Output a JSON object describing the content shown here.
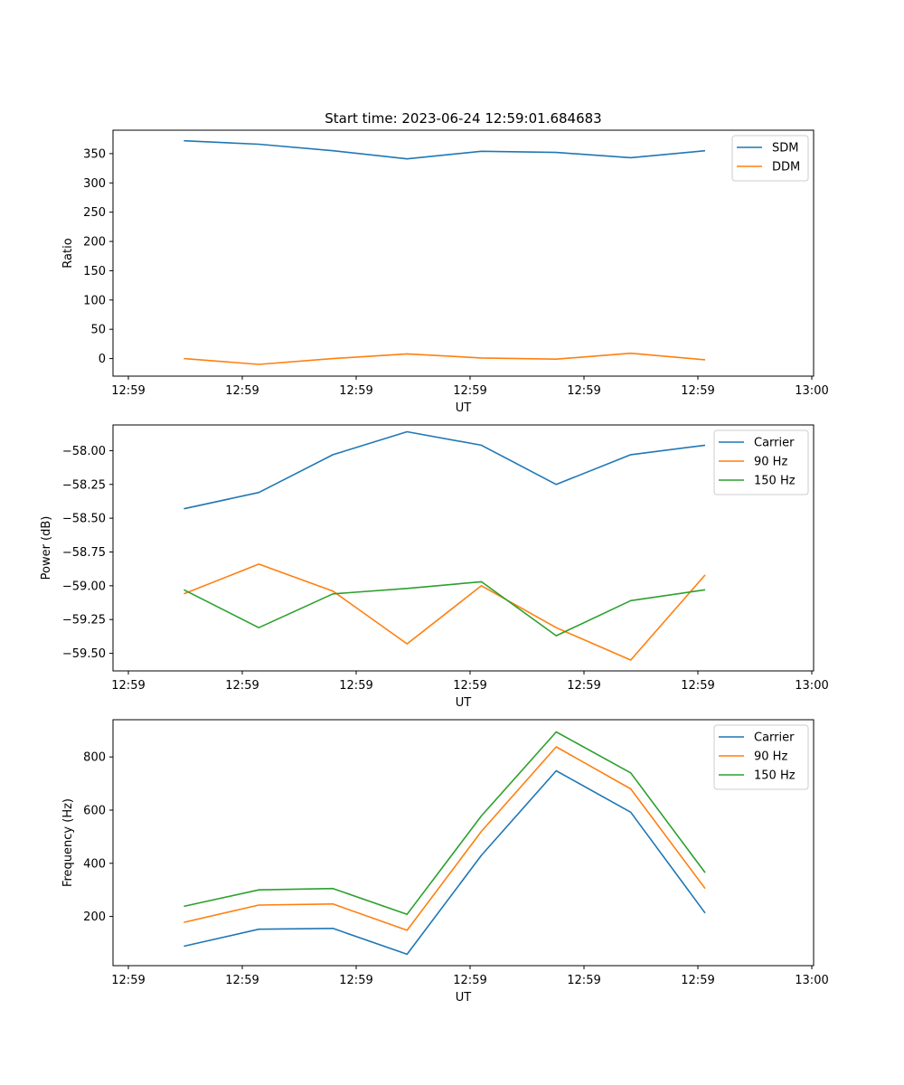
{
  "title": "Start time: 2023-06-24 12:59:01.684683",
  "chart_data": [
    {
      "type": "line",
      "xlabel": "UT",
      "ylabel": "Ratio",
      "x_tick_labels": [
        "12:59",
        "12:59",
        "12:59",
        "12:59",
        "12:59",
        "12:59",
        "13:00"
      ],
      "y_ticks": [
        0,
        50,
        100,
        150,
        200,
        250,
        300,
        350
      ],
      "ylim": [
        -30,
        390
      ],
      "legend_position": "upper right",
      "series": [
        {
          "name": "SDM",
          "color": "#1f77b4",
          "values": [
            372,
            366,
            355,
            341,
            354,
            352,
            343,
            355
          ]
        },
        {
          "name": "DDM",
          "color": "#ff7f0e",
          "values": [
            0,
            -10,
            0,
            8,
            1,
            -1,
            9,
            -2
          ]
        }
      ]
    },
    {
      "type": "line",
      "xlabel": "UT",
      "ylabel": "Power (dB)",
      "x_tick_labels": [
        "12:59",
        "12:59",
        "12:59",
        "12:59",
        "12:59",
        "12:59",
        "13:00"
      ],
      "y_ticks": [
        -59.5,
        -59.25,
        -59.0,
        -58.75,
        -58.5,
        -58.25,
        -58.0
      ],
      "y_tick_labels": [
        "−59.50",
        "−59.25",
        "−59.00",
        "−58.75",
        "−58.50",
        "−58.25",
        "−58.00"
      ],
      "ylim": [
        -59.63,
        -57.81
      ],
      "legend_position": "upper right",
      "series": [
        {
          "name": "Carrier",
          "color": "#1f77b4",
          "values": [
            -58.43,
            -58.31,
            -58.03,
            -57.86,
            -57.96,
            -58.25,
            -58.03,
            -57.96
          ]
        },
        {
          "name": "90 Hz",
          "color": "#ff7f0e",
          "values": [
            -59.06,
            -58.84,
            -59.04,
            -59.43,
            -59.0,
            -59.31,
            -59.55,
            -58.92
          ]
        },
        {
          "name": "150 Hz",
          "color": "#2ca02c",
          "values": [
            -59.03,
            -59.31,
            -59.06,
            -59.02,
            -58.97,
            -59.37,
            -59.11,
            -59.03
          ]
        }
      ]
    },
    {
      "type": "line",
      "xlabel": "UT",
      "ylabel": "Frequency (Hz)",
      "x_tick_labels": [
        "12:59",
        "12:59",
        "12:59",
        "12:59",
        "12:59",
        "12:59",
        "13:00"
      ],
      "y_ticks": [
        200,
        400,
        600,
        800
      ],
      "ylim": [
        15,
        940
      ],
      "legend_position": "upper right",
      "series": [
        {
          "name": "Carrier",
          "color": "#1f77b4",
          "values": [
            88,
            152,
            155,
            58,
            430,
            748,
            592,
            213
          ]
        },
        {
          "name": "90 Hz",
          "color": "#ff7f0e",
          "values": [
            178,
            243,
            247,
            148,
            520,
            838,
            680,
            305
          ]
        },
        {
          "name": "150 Hz",
          "color": "#2ca02c",
          "values": [
            238,
            300,
            305,
            208,
            578,
            894,
            740,
            365
          ]
        }
      ]
    }
  ]
}
